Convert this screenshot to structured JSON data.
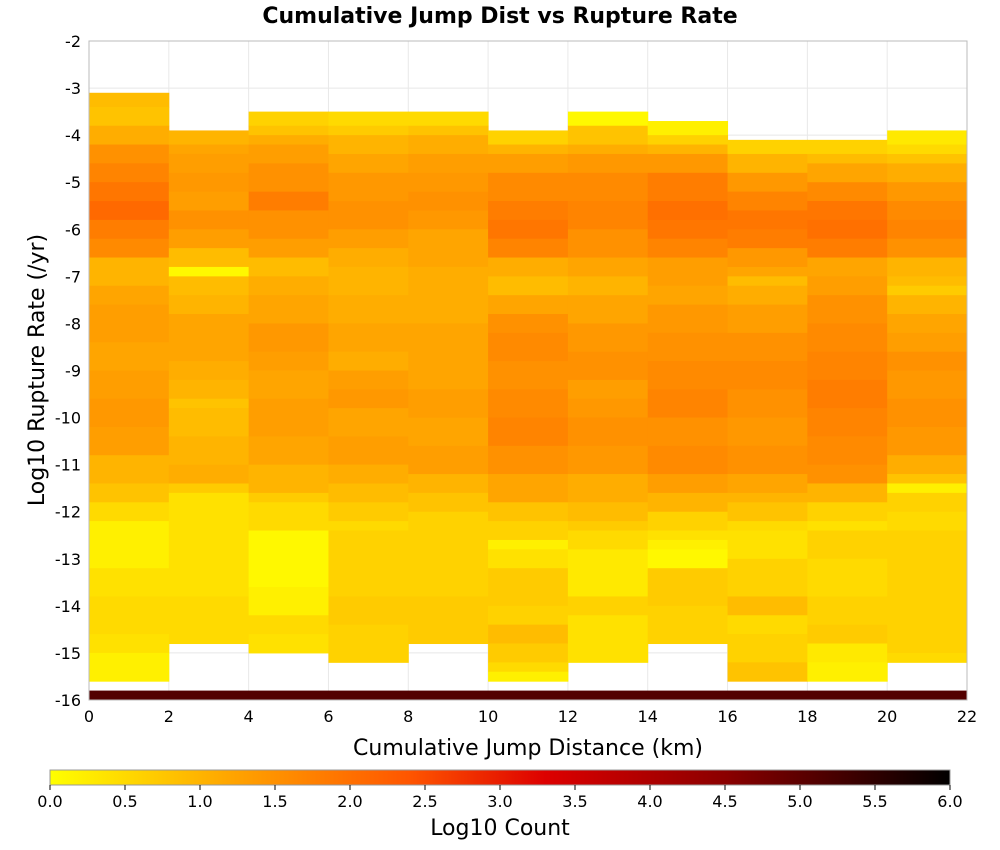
{
  "chart_data": {
    "type": "heatmap",
    "title": "Cumulative Jump Dist vs Rupture Rate",
    "xlabel": "Cumulative Jump Distance (km)",
    "ylabel": "Log10 Rupture Rate (/yr)",
    "xlim": [
      0,
      22
    ],
    "ylim": [
      -16,
      -2
    ],
    "x_ticks": [
      "0",
      "2",
      "4",
      "6",
      "8",
      "10",
      "12",
      "14",
      "16",
      "18",
      "20",
      "22"
    ],
    "y_ticks": [
      "-2",
      "-3",
      "-4",
      "-5",
      "-6",
      "-7",
      "-8",
      "-9",
      "-10",
      "-11",
      "-12",
      "-13",
      "-14",
      "-15",
      "-16"
    ],
    "grid": true,
    "x_bin_width": 2,
    "y_bin_height": 0.2,
    "colorbar": {
      "label": "Log10 Count",
      "range": [
        0.0,
        6.0
      ],
      "ticks": [
        "0.0",
        "0.5",
        "1.0",
        "1.5",
        "2.0",
        "2.5",
        "3.0",
        "3.5",
        "4.0",
        "4.5",
        "5.0",
        "5.5",
        "6.0"
      ],
      "colors": [
        "#ffff00",
        "#ffa500",
        "#ff5500",
        "#dd0000",
        "#8b0000",
        "#000000"
      ]
    },
    "columns": [
      {
        "x": 1,
        "segments": [
          [
            -3.4,
            0.9
          ],
          [
            -3.8,
            0.8
          ],
          [
            -4.2,
            1.1
          ],
          [
            -4.6,
            1.5
          ],
          [
            -5.0,
            1.7
          ],
          [
            -5.4,
            1.9
          ],
          [
            -5.8,
            2.1
          ],
          [
            -6.2,
            1.8
          ],
          [
            -6.6,
            1.6
          ],
          [
            -7.2,
            1.0
          ],
          [
            -7.6,
            1.2
          ],
          [
            -8.4,
            1.3
          ],
          [
            -9.0,
            1.2
          ],
          [
            -9.6,
            1.3
          ],
          [
            -10.2,
            1.4
          ],
          [
            -10.8,
            1.3
          ],
          [
            -11.4,
            1.0
          ],
          [
            -11.8,
            0.8
          ],
          [
            -12.2,
            0.5
          ],
          [
            -13.2,
            0.2
          ],
          [
            -13.8,
            0.4
          ],
          [
            -14.6,
            0.5
          ],
          [
            -15.0,
            0.4
          ],
          [
            -15.6,
            0.2
          ]
        ]
      },
      {
        "x": 3,
        "segments": [
          [
            -4.2,
            1.0
          ],
          [
            -4.4,
            1.2
          ],
          [
            -4.8,
            1.3
          ],
          [
            -5.2,
            1.4
          ],
          [
            -5.6,
            1.3
          ],
          [
            -6.0,
            1.5
          ],
          [
            -6.4,
            1.3
          ],
          [
            -6.8,
            0.9
          ],
          [
            -7.0,
            0.1
          ],
          [
            -7.4,
            0.9
          ],
          [
            -7.8,
            1.0
          ],
          [
            -8.2,
            1.2
          ],
          [
            -8.8,
            1.2
          ],
          [
            -9.2,
            1.1
          ],
          [
            -9.6,
            1.0
          ],
          [
            -9.8,
            0.8
          ],
          [
            -10.4,
            0.9
          ],
          [
            -11.0,
            1.0
          ],
          [
            -11.4,
            1.1
          ],
          [
            -11.6,
            0.7
          ],
          [
            -11.8,
            0.4
          ],
          [
            -13.8,
            0.4
          ],
          [
            -14.8,
            0.5
          ]
        ]
      },
      {
        "x": 5,
        "segments": [
          [
            -3.8,
            0.6
          ],
          [
            -4.0,
            0.8
          ],
          [
            -4.2,
            1.1
          ],
          [
            -4.6,
            1.3
          ],
          [
            -5.2,
            1.5
          ],
          [
            -5.6,
            1.8
          ],
          [
            -6.2,
            1.5
          ],
          [
            -6.6,
            1.3
          ],
          [
            -7.0,
            0.9
          ],
          [
            -7.4,
            1.1
          ],
          [
            -8.0,
            1.2
          ],
          [
            -8.6,
            1.4
          ],
          [
            -9.0,
            1.3
          ],
          [
            -9.6,
            1.2
          ],
          [
            -10.4,
            1.3
          ],
          [
            -11.0,
            1.2
          ],
          [
            -11.6,
            1.0
          ],
          [
            -11.8,
            0.7
          ],
          [
            -12.4,
            0.5
          ],
          [
            -13.6,
            0.1
          ],
          [
            -14.2,
            0.2
          ],
          [
            -14.6,
            0.5
          ],
          [
            -15.0,
            0.4
          ]
        ]
      },
      {
        "x": 7,
        "segments": [
          [
            -3.8,
            0.5
          ],
          [
            -4.0,
            0.7
          ],
          [
            -4.4,
            1.0
          ],
          [
            -4.8,
            1.2
          ],
          [
            -5.4,
            1.4
          ],
          [
            -6.0,
            1.5
          ],
          [
            -6.4,
            1.3
          ],
          [
            -6.8,
            1.1
          ],
          [
            -7.4,
            1.0
          ],
          [
            -8.0,
            1.1
          ],
          [
            -8.6,
            1.2
          ],
          [
            -9.0,
            1.1
          ],
          [
            -9.4,
            1.3
          ],
          [
            -9.8,
            1.4
          ],
          [
            -10.4,
            1.2
          ],
          [
            -11.0,
            1.3
          ],
          [
            -11.4,
            1.1
          ],
          [
            -11.8,
            0.9
          ],
          [
            -12.2,
            0.7
          ],
          [
            -12.4,
            0.5
          ],
          [
            -13.8,
            0.6
          ],
          [
            -14.4,
            0.7
          ],
          [
            -15.2,
            0.6
          ]
        ]
      },
      {
        "x": 9,
        "segments": [
          [
            -3.8,
            0.5
          ],
          [
            -4.0,
            0.8
          ],
          [
            -4.4,
            1.1
          ],
          [
            -4.8,
            1.3
          ],
          [
            -5.2,
            1.4
          ],
          [
            -5.6,
            1.5
          ],
          [
            -6.0,
            1.4
          ],
          [
            -6.8,
            1.2
          ],
          [
            -7.4,
            1.1
          ],
          [
            -8.0,
            1.1
          ],
          [
            -8.8,
            1.2
          ],
          [
            -9.4,
            1.2
          ],
          [
            -10.0,
            1.3
          ],
          [
            -10.6,
            1.2
          ],
          [
            -11.2,
            1.3
          ],
          [
            -11.6,
            1.0
          ],
          [
            -12.0,
            0.8
          ],
          [
            -13.8,
            0.6
          ],
          [
            -14.8,
            0.7
          ]
        ]
      },
      {
        "x": 11,
        "segments": [
          [
            -4.2,
            0.6
          ],
          [
            -4.4,
            1.0
          ],
          [
            -4.8,
            1.3
          ],
          [
            -5.4,
            1.6
          ],
          [
            -5.8,
            1.8
          ],
          [
            -6.2,
            1.9
          ],
          [
            -6.6,
            1.7
          ],
          [
            -7.0,
            1.1
          ],
          [
            -7.4,
            0.9
          ],
          [
            -7.8,
            1.2
          ],
          [
            -8.2,
            1.5
          ],
          [
            -8.8,
            1.6
          ],
          [
            -9.4,
            1.5
          ],
          [
            -10.0,
            1.6
          ],
          [
            -10.6,
            1.7
          ],
          [
            -11.2,
            1.5
          ],
          [
            -11.8,
            1.2
          ],
          [
            -12.2,
            0.8
          ],
          [
            -12.6,
            0.6
          ],
          [
            -12.8,
            0.2
          ],
          [
            -13.2,
            0.4
          ],
          [
            -14.0,
            0.7
          ],
          [
            -14.4,
            0.6
          ],
          [
            -14.8,
            0.9
          ],
          [
            -15.2,
            0.7
          ],
          [
            -15.4,
            0.5
          ],
          [
            -15.6,
            0.2
          ]
        ]
      },
      {
        "x": 13,
        "segments": [
          [
            -3.8,
            0.1
          ],
          [
            -4.2,
            0.8
          ],
          [
            -4.4,
            1.1
          ],
          [
            -4.8,
            1.4
          ],
          [
            -5.4,
            1.6
          ],
          [
            -6.0,
            1.7
          ],
          [
            -6.6,
            1.5
          ],
          [
            -7.0,
            1.2
          ],
          [
            -7.4,
            1.0
          ],
          [
            -8.0,
            1.2
          ],
          [
            -8.6,
            1.4
          ],
          [
            -9.2,
            1.5
          ],
          [
            -9.6,
            1.3
          ],
          [
            -10.0,
            1.4
          ],
          [
            -10.6,
            1.5
          ],
          [
            -11.2,
            1.4
          ],
          [
            -11.8,
            1.1
          ],
          [
            -12.2,
            0.9
          ],
          [
            -12.4,
            0.7
          ],
          [
            -12.8,
            0.5
          ],
          [
            -13.8,
            0.3
          ],
          [
            -14.2,
            0.6
          ],
          [
            -14.6,
            0.4
          ],
          [
            -15.2,
            0.4
          ]
        ]
      },
      {
        "x": 15,
        "segments": [
          [
            -4.0,
            0.2
          ],
          [
            -4.2,
            0.6
          ],
          [
            -4.4,
            1.0
          ],
          [
            -4.8,
            1.4
          ],
          [
            -5.4,
            1.8
          ],
          [
            -5.8,
            2.0
          ],
          [
            -6.2,
            1.9
          ],
          [
            -6.6,
            1.7
          ],
          [
            -7.2,
            1.3
          ],
          [
            -7.6,
            1.2
          ],
          [
            -8.2,
            1.4
          ],
          [
            -8.8,
            1.5
          ],
          [
            -9.4,
            1.6
          ],
          [
            -10.0,
            1.7
          ],
          [
            -10.6,
            1.5
          ],
          [
            -11.2,
            1.6
          ],
          [
            -11.6,
            1.3
          ],
          [
            -12.0,
            1.0
          ],
          [
            -12.4,
            0.6
          ],
          [
            -12.6,
            0.4
          ],
          [
            -12.8,
            0.2
          ],
          [
            -13.2,
            0.1
          ],
          [
            -14.0,
            0.7
          ],
          [
            -14.8,
            0.6
          ]
        ]
      },
      {
        "x": 17,
        "segments": [
          [
            -4.4,
            0.6
          ],
          [
            -4.8,
            1.0
          ],
          [
            -5.2,
            1.4
          ],
          [
            -5.6,
            1.7
          ],
          [
            -6.0,
            1.9
          ],
          [
            -6.4,
            1.8
          ],
          [
            -6.8,
            1.4
          ],
          [
            -7.0,
            1.2
          ],
          [
            -7.2,
            0.9
          ],
          [
            -7.6,
            1.1
          ],
          [
            -8.2,
            1.3
          ],
          [
            -8.8,
            1.5
          ],
          [
            -9.4,
            1.6
          ],
          [
            -10.0,
            1.5
          ],
          [
            -10.6,
            1.4
          ],
          [
            -11.2,
            1.5
          ],
          [
            -11.6,
            1.2
          ],
          [
            -11.8,
            1.0
          ],
          [
            -12.2,
            0.8
          ],
          [
            -12.4,
            0.5
          ],
          [
            -13.0,
            0.4
          ],
          [
            -13.8,
            0.6
          ],
          [
            -14.2,
            0.9
          ],
          [
            -14.6,
            0.5
          ],
          [
            -15.2,
            0.6
          ],
          [
            -15.6,
            0.8
          ]
        ]
      },
      {
        "x": 19,
        "segments": [
          [
            -4.4,
            0.6
          ],
          [
            -4.6,
            0.9
          ],
          [
            -5.0,
            1.2
          ],
          [
            -5.4,
            1.6
          ],
          [
            -5.8,
            1.9
          ],
          [
            -6.2,
            2.0
          ],
          [
            -6.6,
            1.8
          ],
          [
            -7.0,
            1.2
          ],
          [
            -7.4,
            1.3
          ],
          [
            -8.0,
            1.5
          ],
          [
            -8.6,
            1.6
          ],
          [
            -9.2,
            1.7
          ],
          [
            -9.8,
            1.8
          ],
          [
            -10.4,
            1.7
          ],
          [
            -11.0,
            1.6
          ],
          [
            -11.4,
            1.5
          ],
          [
            -11.8,
            1.0
          ],
          [
            -12.2,
            0.6
          ],
          [
            -12.4,
            0.4
          ],
          [
            -13.0,
            0.6
          ],
          [
            -13.8,
            0.5
          ],
          [
            -14.4,
            0.6
          ],
          [
            -14.8,
            0.7
          ],
          [
            -15.2,
            0.3
          ],
          [
            -15.6,
            0.2
          ]
        ]
      },
      {
        "x": 21,
        "segments": [
          [
            -4.2,
            0.3
          ],
          [
            -4.4,
            0.5
          ],
          [
            -4.6,
            0.8
          ],
          [
            -5.0,
            1.1
          ],
          [
            -5.4,
            1.4
          ],
          [
            -5.8,
            1.6
          ],
          [
            -6.2,
            1.7
          ],
          [
            -6.6,
            1.5
          ],
          [
            -7.0,
            1.0
          ],
          [
            -7.2,
            0.9
          ],
          [
            -7.4,
            0.7
          ],
          [
            -7.8,
            1.0
          ],
          [
            -8.2,
            1.2
          ],
          [
            -8.6,
            1.3
          ],
          [
            -9.0,
            1.5
          ],
          [
            -9.6,
            1.4
          ],
          [
            -10.2,
            1.5
          ],
          [
            -10.8,
            1.4
          ],
          [
            -11.2,
            1.1
          ],
          [
            -11.4,
            0.8
          ],
          [
            -11.6,
            0.2
          ],
          [
            -12.0,
            0.6
          ],
          [
            -12.4,
            0.5
          ],
          [
            -15.0,
            0.6
          ],
          [
            -15.2,
            0.5
          ]
        ]
      }
    ],
    "bottom_row": {
      "y": -15.9,
      "value": 5.1
    }
  }
}
